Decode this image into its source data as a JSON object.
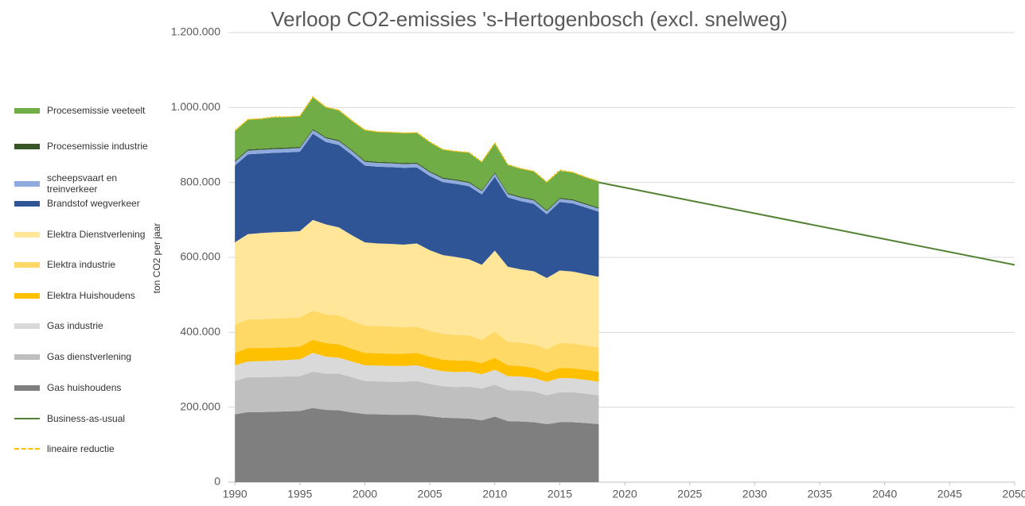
{
  "chart_data": {
    "type": "area",
    "title": "Verloop CO2-emissies 's-Hertogenbosch (excl. snelweg)",
    "y_label": "ton CO2 per jaar",
    "x": [
      1990,
      1991,
      1992,
      1993,
      1994,
      1995,
      1996,
      1997,
      1998,
      1999,
      2000,
      2001,
      2002,
      2003,
      2004,
      2005,
      2006,
      2007,
      2008,
      2009,
      2010,
      2011,
      2012,
      2013,
      2014,
      2015,
      2016,
      2017,
      2018
    ],
    "xlim": [
      1989.5,
      2050
    ],
    "xticks": [
      1990,
      1995,
      2000,
      2005,
      2010,
      2015,
      2020,
      2025,
      2030,
      2035,
      2040,
      2045,
      2050
    ],
    "ylim": [
      0,
      1200000
    ],
    "yticks": [
      0,
      {
        "value": 200000,
        "label": "200.000"
      },
      {
        "value": 400000,
        "label": "400.000"
      },
      {
        "value": 600000,
        "label": "600.000"
      },
      {
        "value": 800000,
        "label": "800.000"
      },
      {
        "value": 1000000,
        "label": "1.000.000"
      },
      {
        "value": 1200000,
        "label": "1.200.000"
      }
    ],
    "grid": true,
    "series": [
      {
        "name": "Gas huishoudens",
        "color": "#7f7f7f",
        "values": [
          181000,
          187000,
          187000,
          188000,
          189000,
          190000,
          198000,
          193000,
          192000,
          186000,
          182000,
          181000,
          180000,
          180000,
          180000,
          176000,
          172000,
          171000,
          170000,
          165000,
          175000,
          163000,
          162000,
          160000,
          155000,
          160000,
          160000,
          158000,
          155000
        ]
      },
      {
        "name": "Gas dienstverlening",
        "color": "#bfbfbf",
        "values": [
          89000,
          93000,
          93000,
          93000,
          93000,
          93000,
          97000,
          97000,
          98000,
          94000,
          88000,
          88000,
          88000,
          88000,
          90000,
          86000,
          84000,
          83000,
          85000,
          85000,
          85000,
          83000,
          83000,
          82000,
          77000,
          80000,
          80000,
          78000,
          77000
        ]
      },
      {
        "name": "Gas industrie",
        "color": "#d9d9d9",
        "values": [
          42000,
          42000,
          43000,
          43000,
          44000,
          45000,
          50000,
          45000,
          42000,
          42000,
          42000,
          42000,
          42000,
          42000,
          42000,
          41000,
          40000,
          40000,
          40000,
          38000,
          40000,
          37000,
          37000,
          36000,
          36000,
          38000,
          37000,
          37000,
          36000
        ]
      },
      {
        "name": "Elektra Huishoudens",
        "color": "#ffc000",
        "values": [
          33000,
          36000,
          35000,
          35000,
          34000,
          34000,
          35000,
          36000,
          36000,
          34000,
          33000,
          33000,
          33000,
          33000,
          33000,
          32000,
          31000,
          31000,
          30000,
          30000,
          32000,
          29000,
          28000,
          27000,
          24000,
          27000,
          27000,
          27000,
          27000
        ]
      },
      {
        "name": "Elektra industrie",
        "color": "#ffd966",
        "values": [
          75000,
          77000,
          77000,
          78000,
          78000,
          78000,
          78000,
          77000,
          77000,
          75000,
          73000,
          73000,
          73000,
          71000,
          70000,
          69000,
          69000,
          68000,
          67000,
          62000,
          70000,
          63000,
          62000,
          63000,
          63000,
          67000,
          66000,
          65000,
          65000
        ]
      },
      {
        "name": "Elektra Dienstverlening",
        "color": "#ffe699",
        "values": [
          220000,
          227000,
          230000,
          230000,
          230000,
          230000,
          242000,
          240000,
          235000,
          228000,
          222000,
          220000,
          220000,
          220000,
          222000,
          215000,
          210000,
          208000,
          203000,
          200000,
          216000,
          200000,
          196000,
          195000,
          190000,
          193000,
          192000,
          190000,
          188000
        ]
      },
      {
        "name": "Brandstof  wegverkeer",
        "color": "#2f5597",
        "values": [
          205000,
          213000,
          212000,
          212000,
          212000,
          212000,
          230000,
          220000,
          220000,
          215000,
          205000,
          205000,
          205000,
          205000,
          203000,
          198000,
          195000,
          195000,
          195000,
          188000,
          197000,
          185000,
          182000,
          180000,
          170000,
          183000,
          182000,
          178000,
          174000
        ]
      },
      {
        "name": "scheepsvaart en treinverkeer",
        "color": "#8faadc",
        "values": [
          10000,
          10000,
          10000,
          10000,
          10000,
          10000,
          10000,
          10000,
          10000,
          10000,
          10000,
          10000,
          10000,
          10000,
          10000,
          10000,
          9000,
          9000,
          9000,
          9000,
          9000,
          9000,
          9000,
          9000,
          8000,
          8000,
          8000,
          8000,
          8000
        ]
      },
      {
        "name": "Procesemissie industrie",
        "color": "#375623",
        "values": [
          3000,
          3000,
          3000,
          3000,
          3000,
          3000,
          3000,
          3000,
          3000,
          3000,
          3000,
          3000,
          3000,
          3000,
          3000,
          3000,
          3000,
          3000,
          3000,
          3000,
          3000,
          3000,
          3000,
          3000,
          3000,
          3000,
          3000,
          3000,
          3000
        ]
      },
      {
        "name": "Procesemissie veeteelt",
        "color": "#70ad47",
        "values": [
          80000,
          80000,
          80000,
          82000,
          82000,
          82000,
          85000,
          80000,
          80000,
          78000,
          82000,
          80000,
          80000,
          80000,
          80000,
          78000,
          75000,
          75000,
          78000,
          75000,
          78000,
          75000,
          75000,
          75000,
          75000,
          72000,
          72000,
          70000,
          70000
        ]
      },
      {
        "name": "Business-as-usual",
        "type": "line",
        "color": "#548235",
        "x": [
          2018,
          2050
        ],
        "values": [
          800000,
          580000
        ]
      },
      {
        "name": "lineaire reductie",
        "type": "line",
        "dashed": true,
        "color": "#ffc000",
        "x": [
          1990,
          1991,
          1992,
          1993,
          1994,
          1995,
          1996,
          1997,
          1998,
          1999,
          2000,
          2001,
          2002,
          2003,
          2004,
          2005,
          2006,
          2007,
          2008,
          2009,
          2010,
          2011,
          2012,
          2013,
          2014,
          2015,
          2016,
          2017,
          2018
        ],
        "values": [
          938000,
          968000,
          970000,
          975000,
          975000,
          977000,
          1028000,
          1001000,
          993000,
          965000,
          940000,
          935000,
          934000,
          932000,
          933000,
          908000,
          888000,
          883000,
          880000,
          855000,
          905000,
          848000,
          837000,
          830000,
          801000,
          833000,
          827000,
          814000,
          803000
        ]
      }
    ]
  }
}
